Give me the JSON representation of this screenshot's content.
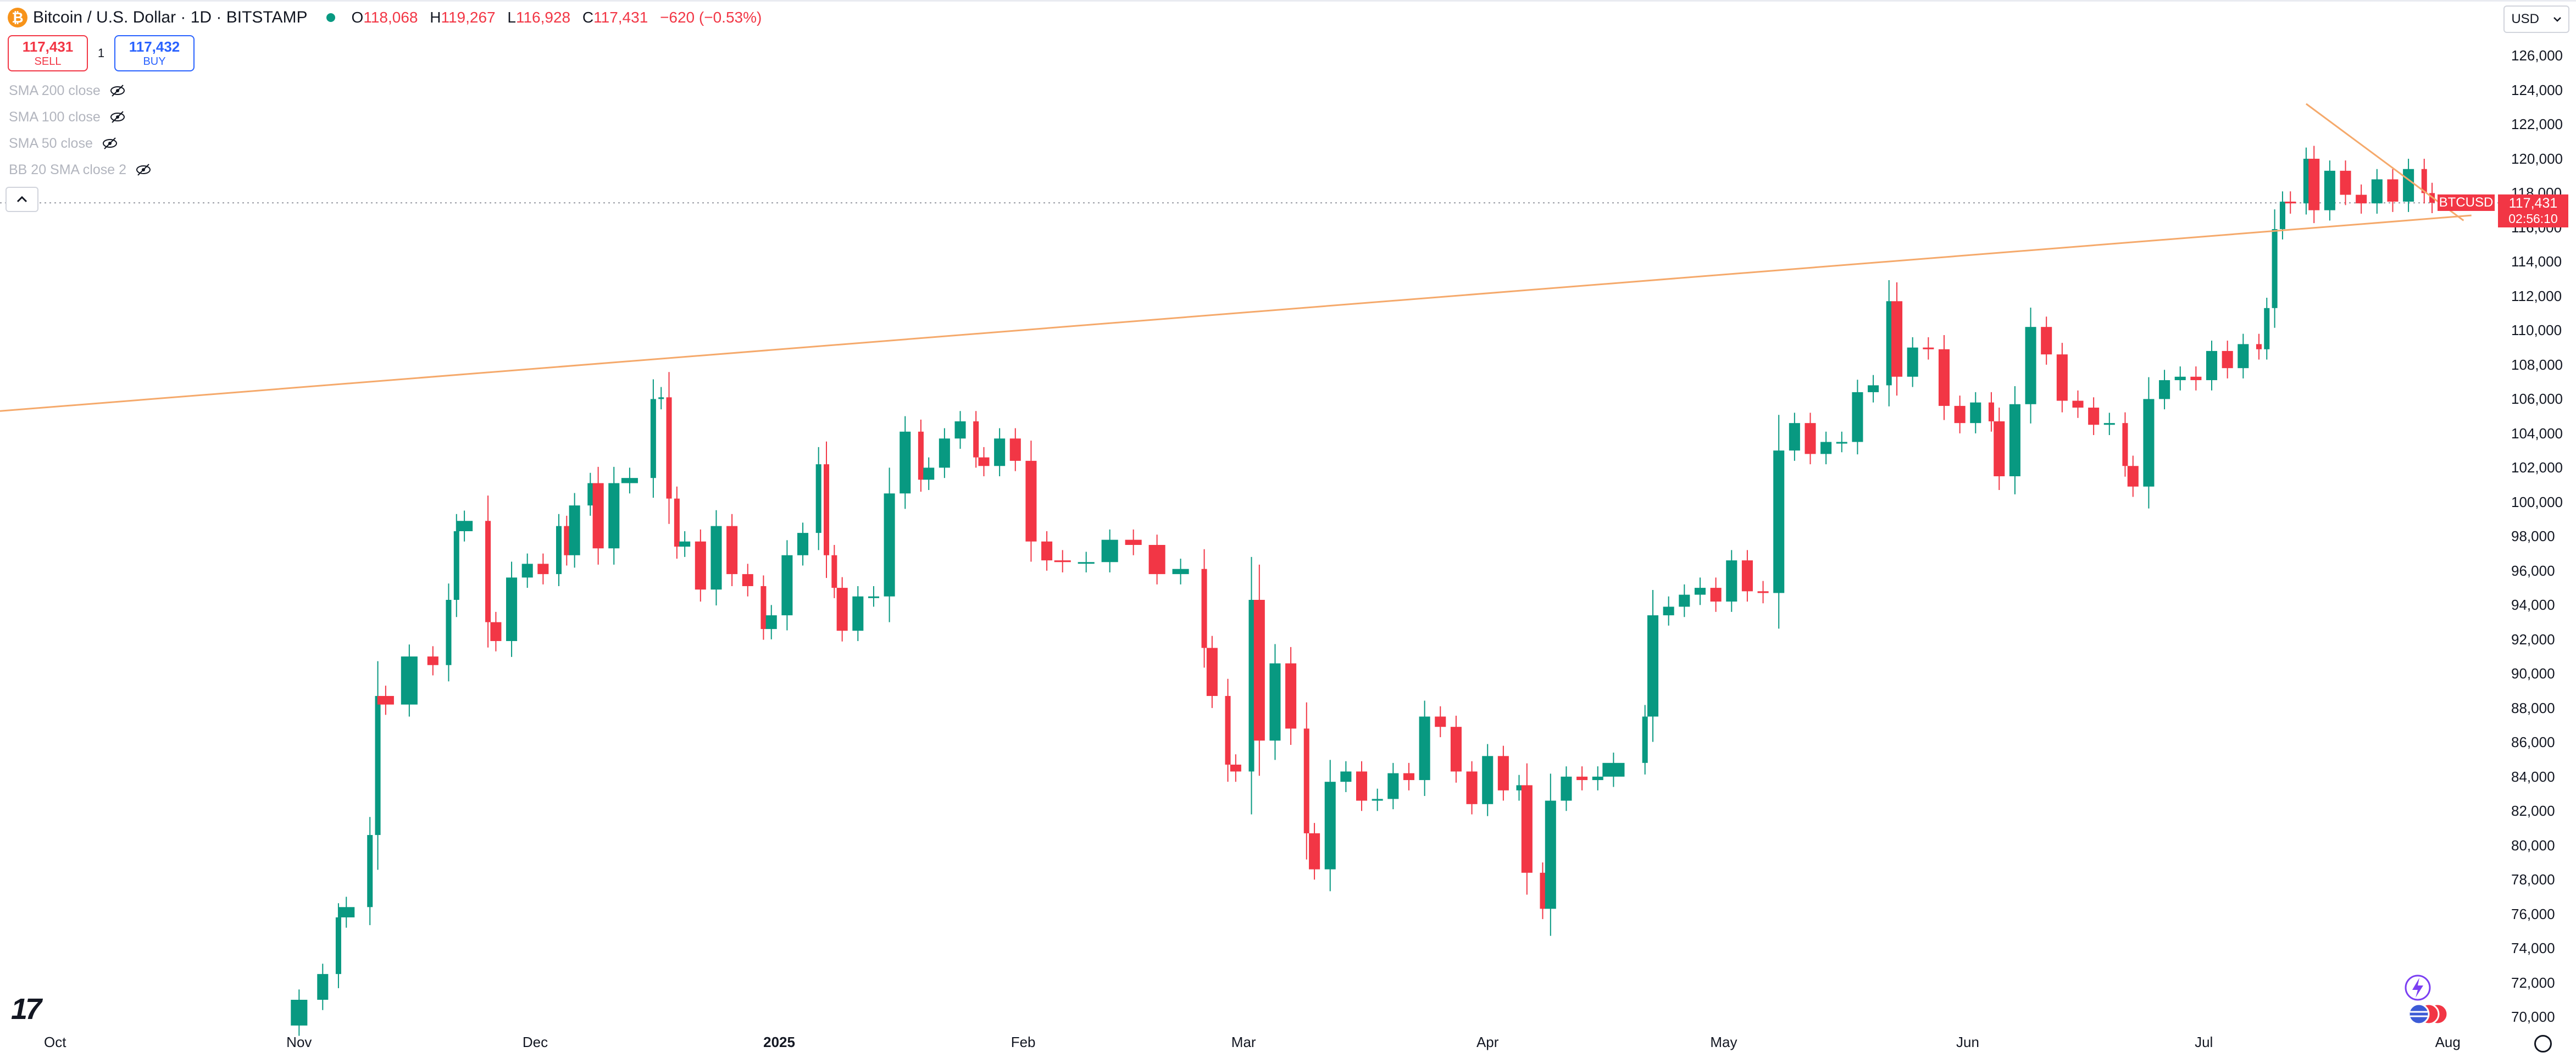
{
  "header": {
    "symbol_icon": "bitcoin-icon",
    "title": "Bitcoin / U.S. Dollar · 1D · BITSTAMP",
    "ohlc": {
      "o_label": "O",
      "o_value": "118,068",
      "h_label": "H",
      "h_value": "119,267",
      "l_label": "L",
      "l_value": "116,928",
      "c_label": "C",
      "c_value": "117,431",
      "change": "−620 (−0.53%)"
    }
  },
  "trade": {
    "sell_price": "117,431",
    "sell_label": "SELL",
    "qty": "1",
    "buy_price": "117,432",
    "buy_label": "BUY"
  },
  "indicators": [
    "SMA 200 close",
    "SMA 100 close",
    "SMA 50 close",
    "BB 20 SMA close 2"
  ],
  "currency": "USD",
  "price_tag": {
    "symbol": "BTCUSD",
    "price": "117,431",
    "countdown": "02:56:10"
  },
  "colors": {
    "up": "#089981",
    "down": "#f23645",
    "trendline": "#f5a96b",
    "last_price": "#f23645"
  },
  "chart_data": {
    "type": "candlestick",
    "y_ticks": [
      "70,000",
      "72,000",
      "74,000",
      "76,000",
      "78,000",
      "80,000",
      "82,000",
      "84,000",
      "86,000",
      "88,000",
      "90,000",
      "92,000",
      "94,000",
      "96,000",
      "98,000",
      "100,000",
      "102,000",
      "104,000",
      "106,000",
      "108,000",
      "110,000",
      "112,000",
      "114,000",
      "116,000",
      "118,000",
      "120,000",
      "122,000",
      "124,000",
      "126,000"
    ],
    "x_labels": [
      {
        "label": "Oct",
        "date": "2024-10-01"
      },
      {
        "label": "Nov",
        "date": "2024-11-01"
      },
      {
        "label": "Dec",
        "date": "2024-12-01"
      },
      {
        "label": "2025",
        "date": "2025-01-01"
      },
      {
        "label": "Feb",
        "date": "2025-02-01"
      },
      {
        "label": "Mar",
        "date": "2025-03-01"
      },
      {
        "label": "Apr",
        "date": "2025-04-01"
      },
      {
        "label": "May",
        "date": "2025-05-01"
      },
      {
        "label": "Jun",
        "date": "2025-06-01"
      },
      {
        "label": "Jul",
        "date": "2025-07-01"
      },
      {
        "label": "Aug",
        "date": "2025-08-01"
      }
    ],
    "ylim": [
      69400,
      127200
    ],
    "xlim": [
      "2024-09-24",
      "2025-08-08"
    ],
    "last_price": 117431,
    "trendlines": [
      {
        "from": {
          "date": "2024-09-24",
          "price": 105300
        },
        "to": {
          "date": "2025-08-04",
          "price": 116700
        }
      },
      {
        "from": {
          "date": "2025-07-14",
          "price": 123200
        },
        "to": {
          "date": "2025-08-03",
          "price": 116400
        }
      }
    ],
    "closes": [
      {
        "date": "2024-11-01",
        "close": 71000
      },
      {
        "date": "2024-11-04",
        "close": 72500
      },
      {
        "date": "2024-11-06",
        "close": 75800
      },
      {
        "date": "2024-11-07",
        "close": 76400
      },
      {
        "date": "2024-11-10",
        "close": 80600
      },
      {
        "date": "2024-11-11",
        "close": 88700
      },
      {
        "date": "2024-11-12",
        "close": 88200
      },
      {
        "date": "2024-11-15",
        "close": 91000
      },
      {
        "date": "2024-11-18",
        "close": 90500
      },
      {
        "date": "2024-11-20",
        "close": 94300
      },
      {
        "date": "2024-11-21",
        "close": 98300
      },
      {
        "date": "2024-11-22",
        "close": 98900
      },
      {
        "date": "2024-11-25",
        "close": 93000
      },
      {
        "date": "2024-11-26",
        "close": 91900
      },
      {
        "date": "2024-11-28",
        "close": 95600
      },
      {
        "date": "2024-11-30",
        "close": 96400
      },
      {
        "date": "2024-12-02",
        "close": 95800
      },
      {
        "date": "2024-12-04",
        "close": 98600
      },
      {
        "date": "2024-12-05",
        "close": 96900
      },
      {
        "date": "2024-12-06",
        "close": 99800
      },
      {
        "date": "2024-12-08",
        "close": 101100
      },
      {
        "date": "2024-12-09",
        "close": 97300
      },
      {
        "date": "2024-12-11",
        "close": 101100
      },
      {
        "date": "2024-12-13",
        "close": 101400
      },
      {
        "date": "2024-12-16",
        "close": 106000
      },
      {
        "date": "2024-12-17",
        "close": 106100
      },
      {
        "date": "2024-12-18",
        "close": 100200
      },
      {
        "date": "2024-12-19",
        "close": 97400
      },
      {
        "date": "2024-12-20",
        "close": 97700
      },
      {
        "date": "2024-12-22",
        "close": 94900
      },
      {
        "date": "2024-12-24",
        "close": 98600
      },
      {
        "date": "2024-12-26",
        "close": 95800
      },
      {
        "date": "2024-12-28",
        "close": 95100
      },
      {
        "date": "2024-12-30",
        "close": 92600
      },
      {
        "date": "2024-12-31",
        "close": 93400
      },
      {
        "date": "2025-01-02",
        "close": 96900
      },
      {
        "date": "2025-01-04",
        "close": 98200
      },
      {
        "date": "2025-01-06",
        "close": 102200
      },
      {
        "date": "2025-01-07",
        "close": 96900
      },
      {
        "date": "2025-01-08",
        "close": 95000
      },
      {
        "date": "2025-01-09",
        "close": 92500
      },
      {
        "date": "2025-01-11",
        "close": 94500
      },
      {
        "date": "2025-01-13",
        "close": 94500
      },
      {
        "date": "2025-01-15",
        "close": 100500
      },
      {
        "date": "2025-01-17",
        "close": 104100
      },
      {
        "date": "2025-01-19",
        "close": 101300
      },
      {
        "date": "2025-01-20",
        "close": 102000
      },
      {
        "date": "2025-01-22",
        "close": 103700
      },
      {
        "date": "2025-01-24",
        "close": 104700
      },
      {
        "date": "2025-01-26",
        "close": 102600
      },
      {
        "date": "2025-01-27",
        "close": 102100
      },
      {
        "date": "2025-01-29",
        "close": 103700
      },
      {
        "date": "2025-01-31",
        "close": 102400
      },
      {
        "date": "2025-02-02",
        "close": 97700
      },
      {
        "date": "2025-02-04",
        "close": 96600
      },
      {
        "date": "2025-02-06",
        "close": 96500
      },
      {
        "date": "2025-02-09",
        "close": 96500
      },
      {
        "date": "2025-02-12",
        "close": 97800
      },
      {
        "date": "2025-02-15",
        "close": 97500
      },
      {
        "date": "2025-02-18",
        "close": 95800
      },
      {
        "date": "2025-02-21",
        "close": 96100
      },
      {
        "date": "2025-02-24",
        "close": 91500
      },
      {
        "date": "2025-02-25",
        "close": 88700
      },
      {
        "date": "2025-02-27",
        "close": 84700
      },
      {
        "date": "2025-02-28",
        "close": 84300
      },
      {
        "date": "2025-03-02",
        "close": 94300
      },
      {
        "date": "2025-03-03",
        "close": 86100
      },
      {
        "date": "2025-03-05",
        "close": 90600
      },
      {
        "date": "2025-03-07",
        "close": 86800
      },
      {
        "date": "2025-03-09",
        "close": 80700
      },
      {
        "date": "2025-03-10",
        "close": 78600
      },
      {
        "date": "2025-03-12",
        "close": 83700
      },
      {
        "date": "2025-03-14",
        "close": 84300
      },
      {
        "date": "2025-03-16",
        "close": 82600
      },
      {
        "date": "2025-03-18",
        "close": 82700
      },
      {
        "date": "2025-03-20",
        "close": 84200
      },
      {
        "date": "2025-03-22",
        "close": 83800
      },
      {
        "date": "2025-03-24",
        "close": 87500
      },
      {
        "date": "2025-03-26",
        "close": 86900
      },
      {
        "date": "2025-03-28",
        "close": 84300
      },
      {
        "date": "2025-03-30",
        "close": 82400
      },
      {
        "date": "2025-04-01",
        "close": 85200
      },
      {
        "date": "2025-04-03",
        "close": 83200
      },
      {
        "date": "2025-04-05",
        "close": 83500
      },
      {
        "date": "2025-04-06",
        "close": 78400
      },
      {
        "date": "2025-04-08",
        "close": 76300
      },
      {
        "date": "2025-04-09",
        "close": 82600
      },
      {
        "date": "2025-04-11",
        "close": 84000
      },
      {
        "date": "2025-04-13",
        "close": 83800
      },
      {
        "date": "2025-04-15",
        "close": 84000
      },
      {
        "date": "2025-04-17",
        "close": 84800
      },
      {
        "date": "2025-04-21",
        "close": 87500
      },
      {
        "date": "2025-04-22",
        "close": 93400
      },
      {
        "date": "2025-04-24",
        "close": 93900
      },
      {
        "date": "2025-04-26",
        "close": 94600
      },
      {
        "date": "2025-04-28",
        "close": 95000
      },
      {
        "date": "2025-04-30",
        "close": 94200
      },
      {
        "date": "2025-05-02",
        "close": 96600
      },
      {
        "date": "2025-05-04",
        "close": 94800
      },
      {
        "date": "2025-05-06",
        "close": 94700
      },
      {
        "date": "2025-05-08",
        "close": 103000
      },
      {
        "date": "2025-05-10",
        "close": 104600
      },
      {
        "date": "2025-05-12",
        "close": 102800
      },
      {
        "date": "2025-05-14",
        "close": 103500
      },
      {
        "date": "2025-05-16",
        "close": 103500
      },
      {
        "date": "2025-05-18",
        "close": 106400
      },
      {
        "date": "2025-05-20",
        "close": 106800
      },
      {
        "date": "2025-05-22",
        "close": 111700
      },
      {
        "date": "2025-05-23",
        "close": 107300
      },
      {
        "date": "2025-05-25",
        "close": 109000
      },
      {
        "date": "2025-05-27",
        "close": 108900
      },
      {
        "date": "2025-05-29",
        "close": 105600
      },
      {
        "date": "2025-05-31",
        "close": 104600
      },
      {
        "date": "2025-06-02",
        "close": 105800
      },
      {
        "date": "2025-06-04",
        "close": 104700
      },
      {
        "date": "2025-06-05",
        "close": 101500
      },
      {
        "date": "2025-06-07",
        "close": 105700
      },
      {
        "date": "2025-06-09",
        "close": 110200
      },
      {
        "date": "2025-06-11",
        "close": 108600
      },
      {
        "date": "2025-06-13",
        "close": 105900
      },
      {
        "date": "2025-06-15",
        "close": 105500
      },
      {
        "date": "2025-06-17",
        "close": 104500
      },
      {
        "date": "2025-06-19",
        "close": 104600
      },
      {
        "date": "2025-06-21",
        "close": 102100
      },
      {
        "date": "2025-06-22",
        "close": 100900
      },
      {
        "date": "2025-06-24",
        "close": 106000
      },
      {
        "date": "2025-06-26",
        "close": 107100
      },
      {
        "date": "2025-06-28",
        "close": 107300
      },
      {
        "date": "2025-06-30",
        "close": 107100
      },
      {
        "date": "2025-07-02",
        "close": 108800
      },
      {
        "date": "2025-07-04",
        "close": 107800
      },
      {
        "date": "2025-07-06",
        "close": 109200
      },
      {
        "date": "2025-07-08",
        "close": 108900
      },
      {
        "date": "2025-07-09",
        "close": 111300
      },
      {
        "date": "2025-07-10",
        "close": 115900
      },
      {
        "date": "2025-07-11",
        "close": 117500
      },
      {
        "date": "2025-07-12",
        "close": 117400
      },
      {
        "date": "2025-07-14",
        "close": 120000
      },
      {
        "date": "2025-07-15",
        "close": 117000
      },
      {
        "date": "2025-07-17",
        "close": 119300
      },
      {
        "date": "2025-07-19",
        "close": 117900
      },
      {
        "date": "2025-07-21",
        "close": 117400
      },
      {
        "date": "2025-07-23",
        "close": 118800
      },
      {
        "date": "2025-07-25",
        "close": 117500
      },
      {
        "date": "2025-07-27",
        "close": 119400
      },
      {
        "date": "2025-07-29",
        "close": 118000
      },
      {
        "date": "2025-07-30",
        "close": 117431
      }
    ]
  }
}
